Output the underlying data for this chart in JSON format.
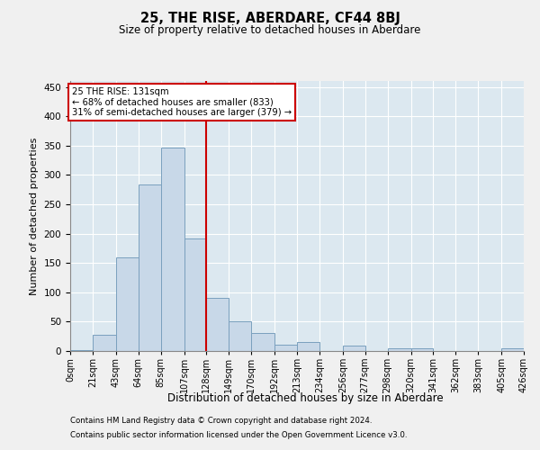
{
  "title": "25, THE RISE, ABERDARE, CF44 8BJ",
  "subtitle": "Size of property relative to detached houses in Aberdare",
  "xlabel": "Distribution of detached houses by size in Aberdare",
  "ylabel": "Number of detached properties",
  "footnote1": "Contains HM Land Registry data © Crown copyright and database right 2024.",
  "footnote2": "Contains public sector information licensed under the Open Government Licence v3.0.",
  "annotation_line1": "25 THE RISE: 131sqm",
  "annotation_line2": "← 68% of detached houses are smaller (833)",
  "annotation_line3": "31% of semi-detached houses are larger (379) →",
  "property_size": 131,
  "bin_edges": [
    0,
    21,
    43,
    64,
    85,
    107,
    128,
    149,
    170,
    192,
    213,
    234,
    256,
    277,
    298,
    320,
    341,
    362,
    383,
    405,
    426
  ],
  "bar_heights": [
    2,
    28,
    160,
    283,
    346,
    191,
    90,
    50,
    30,
    10,
    15,
    0,
    9,
    0,
    5,
    5,
    0,
    0,
    0,
    5
  ],
  "bar_color": "#c8d8e8",
  "bar_edge_color": "#7aa0be",
  "vline_color": "#cc0000",
  "vline_x": 128,
  "bg_color": "#dce8f0",
  "grid_color": "#ffffff",
  "fig_bg_color": "#f0f0f0",
  "ylim": [
    0,
    460
  ],
  "yticks": [
    0,
    50,
    100,
    150,
    200,
    250,
    300,
    350,
    400,
    450
  ],
  "tick_labels": [
    "0sqm",
    "21sqm",
    "43sqm",
    "64sqm",
    "85sqm",
    "107sqm",
    "128sqm",
    "149sqm",
    "170sqm",
    "192sqm",
    "213sqm",
    "234sqm",
    "256sqm",
    "277sqm",
    "298sqm",
    "320sqm",
    "341sqm",
    "362sqm",
    "383sqm",
    "405sqm",
    "426sqm"
  ]
}
